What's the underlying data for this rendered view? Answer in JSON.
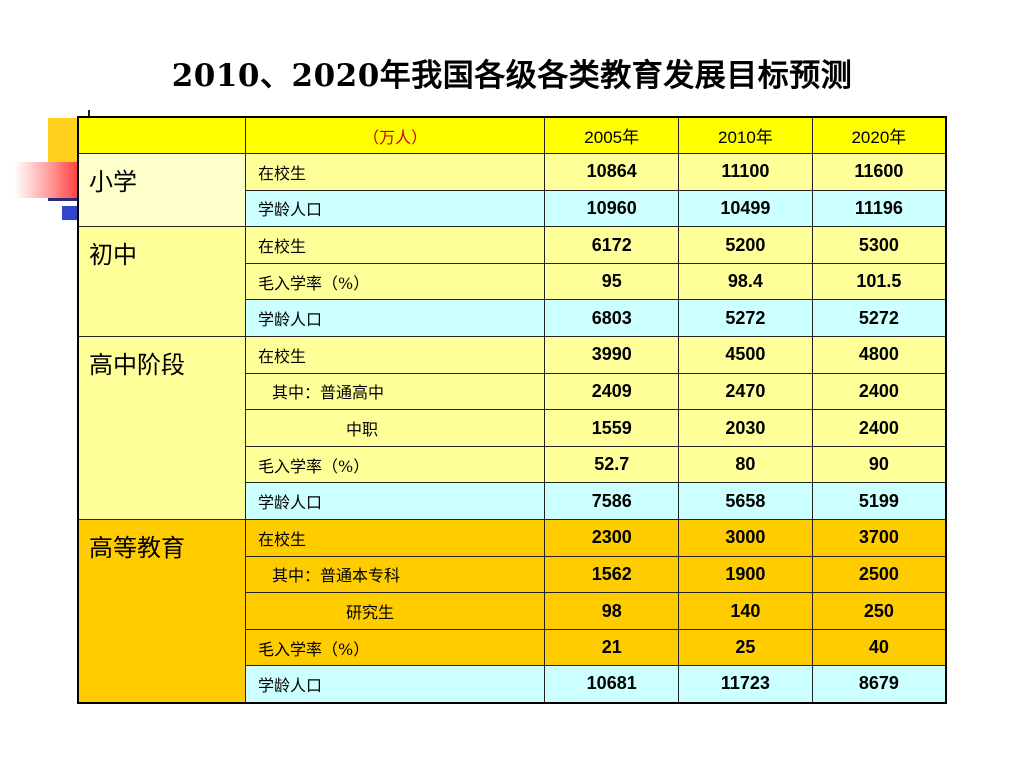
{
  "title": "2010、2020年我国各级各类教育发展目标预测",
  "header": {
    "unit": "（万人）",
    "years": [
      "2005年",
      "2010年",
      "2020年"
    ]
  },
  "rows": [
    {
      "category": "小学",
      "label": "在校生",
      "values": [
        "10864",
        "11100",
        "11600"
      ]
    },
    {
      "category": "",
      "label": "学龄人口",
      "values": [
        "10960",
        "10499",
        "11196"
      ]
    },
    {
      "category": "初中",
      "label": "在校生",
      "values": [
        "6172",
        "5200",
        "5300"
      ]
    },
    {
      "category": "",
      "label": "毛入学率（%）",
      "values": [
        "95",
        "98.4",
        "101.5"
      ]
    },
    {
      "category": "",
      "label": "学龄人口",
      "values": [
        "6803",
        "5272",
        "5272"
      ]
    },
    {
      "category": "高中阶段",
      "label": "在校生",
      "values": [
        "3990",
        "4500",
        "4800"
      ]
    },
    {
      "category": "",
      "label": "其中：普通高中",
      "values": [
        "2409",
        "2470",
        "2400"
      ]
    },
    {
      "category": "",
      "label": "中职",
      "values": [
        "1559",
        "2030",
        "2400"
      ]
    },
    {
      "category": "",
      "label": "毛入学率（%）",
      "values": [
        "52.7",
        "80",
        "90"
      ]
    },
    {
      "category": "",
      "label": "学龄人口",
      "values": [
        "7586",
        "5658",
        "5199"
      ]
    },
    {
      "category": "高等教育",
      "label": "在校生",
      "values": [
        "2300",
        "3000",
        "3700"
      ]
    },
    {
      "category": "",
      "label": "其中：普通本专科",
      "values": [
        "1562",
        "1900",
        "2500"
      ]
    },
    {
      "category": "",
      "label": "研究生",
      "values": [
        "98",
        "140",
        "250"
      ]
    },
    {
      "category": "",
      "label": "毛入学率（%）",
      "values": [
        "21",
        "25",
        "40"
      ]
    },
    {
      "category": "",
      "label": "学龄人口",
      "values": [
        "10681",
        "11723",
        "8679"
      ]
    }
  ],
  "colors": {
    "header_bg": "#ffff00",
    "light_yellow": "#ffff99",
    "light_cyan": "#ccffff",
    "orange": "#ffcc00",
    "unit_text": "#cc0000"
  }
}
